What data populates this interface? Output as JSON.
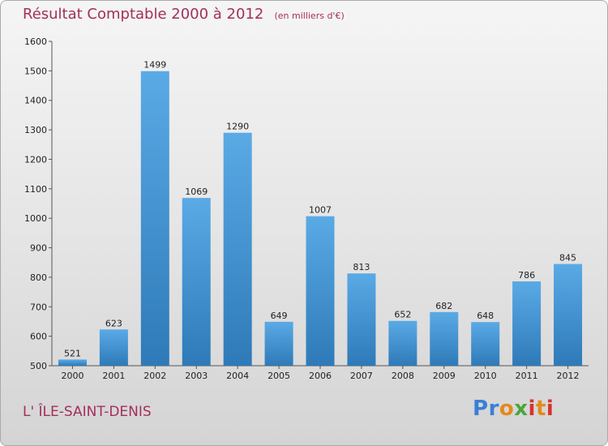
{
  "header": {
    "title": "Résultat Comptable 2000 à 2012",
    "unit": "(en milliers d'€)"
  },
  "location": "L' ÎLE-SAINT-DENIS",
  "logo": {
    "text": "Proxiti",
    "colors": [
      "#3b7fd6",
      "#e38a1c",
      "#4aa63b",
      "#d7322e"
    ]
  },
  "colors": {
    "bar_top": "#5aaae6",
    "bar_bottom": "#2e7ab8",
    "title": "#a32f5c"
  },
  "chart_data": {
    "type": "bar",
    "title": "Résultat Comptable 2000 à 2012",
    "xlabel": "",
    "ylabel": "",
    "categories": [
      "2000",
      "2001",
      "2002",
      "2003",
      "2004",
      "2005",
      "2006",
      "2007",
      "2008",
      "2009",
      "2010",
      "2011",
      "2012"
    ],
    "values": [
      521,
      623,
      1499,
      1069,
      1290,
      649,
      1007,
      813,
      652,
      682,
      648,
      786,
      845
    ],
    "ylim": [
      500,
      1600
    ],
    "yticks": [
      500,
      600,
      700,
      800,
      900,
      1000,
      1100,
      1200,
      1300,
      1400,
      1500,
      1600
    ],
    "grid": false,
    "legend": "none"
  }
}
